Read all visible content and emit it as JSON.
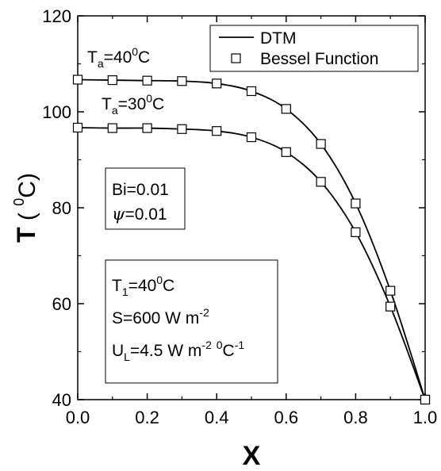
{
  "chart_data": {
    "type": "line",
    "xlabel": "X",
    "ylabel_main": "T",
    "ylabel_unit": "0",
    "ylabel_unit_after": "C",
    "xlim": [
      0.0,
      1.0
    ],
    "ylim": [
      40,
      120
    ],
    "x_ticks": [
      "0.0",
      "0.2",
      "0.4",
      "0.6",
      "0.8",
      "1.0"
    ],
    "x_tick_values": [
      0.0,
      0.2,
      0.4,
      0.6,
      0.8,
      1.0
    ],
    "y_ticks": [
      "40",
      "60",
      "80",
      "100",
      "120"
    ],
    "y_tick_values": [
      40,
      60,
      80,
      100,
      120
    ],
    "legend": {
      "position": "top-right",
      "entries": [
        "DTM",
        "Bessel Function"
      ]
    },
    "series": [
      {
        "name": "DTM",
        "curve_label": "Ta=40°C",
        "style": "line",
        "x": [
          0.0,
          0.1,
          0.2,
          0.3,
          0.4,
          0.5,
          0.6,
          0.7,
          0.8,
          0.9,
          1.0
        ],
        "values": [
          106.7,
          106.6,
          106.5,
          106.4,
          105.9,
          104.3,
          100.6,
          93.3,
          80.9,
          62.7,
          40.0
        ]
      },
      {
        "name": "DTM",
        "curve_label": "Ta=30°C",
        "style": "line",
        "x": [
          0.0,
          0.1,
          0.2,
          0.3,
          0.4,
          0.5,
          0.6,
          0.7,
          0.8,
          0.9,
          1.0
        ],
        "values": [
          96.7,
          96.6,
          96.6,
          96.4,
          96.0,
          94.7,
          91.6,
          85.4,
          74.9,
          59.4,
          40.0
        ]
      },
      {
        "name": "Bessel Function",
        "curve_label": "Ta=40°C",
        "style": "markers",
        "x": [
          0.0,
          0.1,
          0.2,
          0.3,
          0.4,
          0.5,
          0.6,
          0.7,
          0.8,
          0.9,
          1.0
        ],
        "values": [
          106.7,
          106.6,
          106.5,
          106.4,
          105.9,
          104.3,
          100.6,
          93.3,
          80.9,
          62.7,
          40.0
        ]
      },
      {
        "name": "Bessel Function",
        "curve_label": "Ta=30°C",
        "style": "markers",
        "x": [
          0.0,
          0.1,
          0.2,
          0.3,
          0.4,
          0.5,
          0.6,
          0.7,
          0.8,
          0.9,
          1.0
        ],
        "values": [
          96.7,
          96.6,
          96.6,
          96.4,
          96.0,
          94.7,
          91.6,
          85.4,
          74.9,
          59.4,
          40.0
        ]
      }
    ],
    "annotations": {
      "ta40": {
        "main": "T",
        "sub": "a",
        "eq": "=40",
        "sup": "0",
        "tail": "C"
      },
      "ta30": {
        "main": "T",
        "sub": "a",
        "eq": "=30",
        "sup": "0",
        "tail": "C"
      },
      "params_box": {
        "line1": "Bi=0.01",
        "line2_symbol": "ψ",
        "line2_rest": "=0.01"
      },
      "conditions_box": {
        "t1_main": "T",
        "t1_sub": "1",
        "t1_eq": "=40",
        "t1_sup": "0",
        "t1_tail": "C",
        "s_main": "S=600 W m",
        "s_sup": "-2",
        "ul_main": "U",
        "ul_sub": "L",
        "ul_eq": "=4.5 W m",
        "ul_sup1": "-2",
        "ul_mid": " ",
        "ul_sup0": "0",
        "ul_c": "C",
        "ul_sup2": "-1"
      }
    },
    "colors": {
      "line": "#000000",
      "marker_fill": "#ffffff",
      "background": "#ffffff"
    }
  }
}
